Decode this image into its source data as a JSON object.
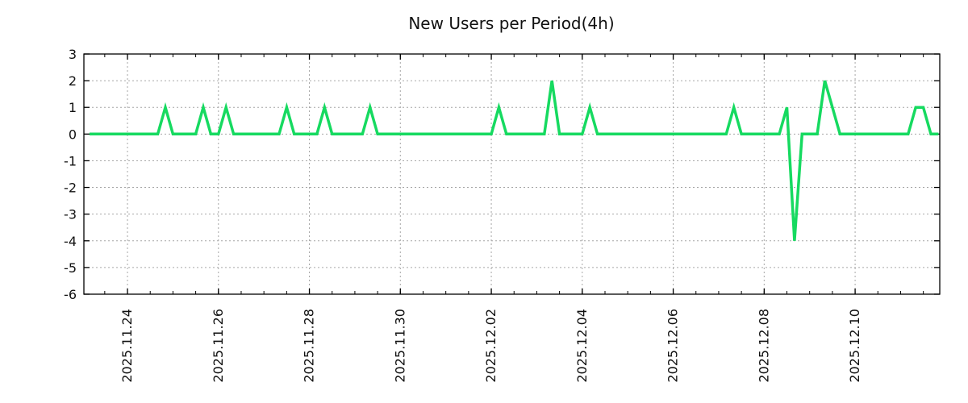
{
  "chart_data": {
    "type": "line",
    "title": "New Users per Period(4h)",
    "legend": "none",
    "grid": true,
    "x_axis": {
      "tick_labels": [
        "2025.11.24",
        "2025.11.26",
        "2025.11.28",
        "2025.11.30",
        "2025.12.02",
        "2025.12.04",
        "2025.12.06",
        "2025.12.08",
        "2025.12.10"
      ],
      "major_tick_interval": "2 days",
      "minor_tick_interval": "12 hours",
      "domain_start": "2025-11-23 01:00",
      "domain_end": "2025-12-11 20:40"
    },
    "y_axis": {
      "ticks": [
        3,
        2,
        1,
        0,
        -1,
        -2,
        -3,
        -4,
        -5,
        -6
      ],
      "range": [
        -6,
        3
      ]
    },
    "series": [
      {
        "name": "new-users",
        "color": "#16da60",
        "period_hours": 4,
        "data_start": "2025-11-23 04:00",
        "data_end": "2025-12-11 20:00",
        "baseline_value": 0,
        "nonzero_points": [
          {
            "time": "2025-11-24 20:00",
            "value": 1
          },
          {
            "time": "2025-11-25 16:00",
            "value": 1
          },
          {
            "time": "2025-11-26 04:00",
            "value": 1
          },
          {
            "time": "2025-11-27 12:00",
            "value": 1
          },
          {
            "time": "2025-11-28 08:00",
            "value": 1
          },
          {
            "time": "2025-11-29 08:00",
            "value": 1
          },
          {
            "time": "2025-12-02 04:00",
            "value": 1
          },
          {
            "time": "2025-12-03 08:00",
            "value": 2
          },
          {
            "time": "2025-12-04 04:00",
            "value": 1
          },
          {
            "time": "2025-12-07 08:00",
            "value": 1
          },
          {
            "time": "2025-12-08 12:00",
            "value": 1
          },
          {
            "time": "2025-12-08 16:00",
            "value": -4
          },
          {
            "time": "2025-12-09 08:00",
            "value": 2
          },
          {
            "time": "2025-12-09 12:00",
            "value": 1
          },
          {
            "time": "2025-12-11 08:00",
            "value": 1
          },
          {
            "time": "2025-12-11 12:00",
            "value": 1
          }
        ]
      }
    ]
  },
  "colors": {
    "background": "#ffffff",
    "grid": "#a6a6a6",
    "axis": "#000000",
    "text": "#111111",
    "line": "#16da60"
  }
}
